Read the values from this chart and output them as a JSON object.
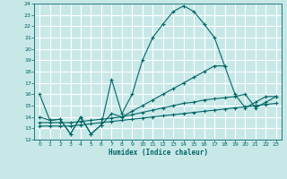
{
  "xlabel": "Humidex (Indice chaleur)",
  "xlim": [
    -0.5,
    23.5
  ],
  "ylim": [
    12,
    24
  ],
  "xticks": [
    0,
    1,
    2,
    3,
    4,
    5,
    6,
    7,
    8,
    9,
    10,
    11,
    12,
    13,
    14,
    15,
    16,
    17,
    18,
    19,
    20,
    21,
    22,
    23
  ],
  "yticks": [
    12,
    13,
    14,
    15,
    16,
    17,
    18,
    19,
    20,
    21,
    22,
    23,
    24
  ],
  "bg_color": "#c8e8e8",
  "grid_color": "#ffffff",
  "line_color": "#006666",
  "series": [
    {
      "x": [
        0,
        1,
        2,
        3,
        4,
        5,
        6,
        7,
        8,
        9,
        10,
        11,
        12,
        13,
        14,
        15,
        16,
        17,
        18
      ],
      "y": [
        16.0,
        13.7,
        13.8,
        12.5,
        14.0,
        12.5,
        13.3,
        17.3,
        14.3,
        16.0,
        19.0,
        21.0,
        22.2,
        23.3,
        23.8,
        23.3,
        22.2,
        21.0,
        18.5
      ]
    },
    {
      "x": [
        0,
        1,
        2,
        3,
        4,
        5,
        6,
        7,
        8,
        9,
        10,
        11,
        12,
        13,
        14,
        15,
        16,
        17,
        18,
        19,
        20,
        21,
        22,
        23
      ],
      "y": [
        14.0,
        13.7,
        13.8,
        12.5,
        14.0,
        12.5,
        13.3,
        14.3,
        14.0,
        14.5,
        15.0,
        15.5,
        16.0,
        16.5,
        17.0,
        17.5,
        18.0,
        18.5,
        18.5,
        16.0,
        14.8,
        15.3,
        15.8,
        15.8
      ]
    },
    {
      "x": [
        0,
        1,
        2,
        3,
        4,
        5,
        6,
        7,
        8,
        9,
        10,
        11,
        12,
        13,
        14,
        15,
        16,
        17,
        18,
        19,
        20,
        21,
        22,
        23
      ],
      "y": [
        13.5,
        13.5,
        13.5,
        13.5,
        13.6,
        13.7,
        13.8,
        13.9,
        14.0,
        14.2,
        14.4,
        14.6,
        14.8,
        15.0,
        15.2,
        15.3,
        15.5,
        15.6,
        15.7,
        15.8,
        16.0,
        14.8,
        15.3,
        15.8
      ]
    },
    {
      "x": [
        0,
        1,
        2,
        3,
        4,
        5,
        6,
        7,
        8,
        9,
        10,
        11,
        12,
        13,
        14,
        15,
        16,
        17,
        18,
        19,
        20,
        21,
        22,
        23
      ],
      "y": [
        13.2,
        13.2,
        13.2,
        13.2,
        13.3,
        13.4,
        13.5,
        13.6,
        13.7,
        13.8,
        13.9,
        14.0,
        14.1,
        14.2,
        14.3,
        14.4,
        14.5,
        14.6,
        14.7,
        14.8,
        14.9,
        15.0,
        15.1,
        15.2
      ]
    }
  ]
}
